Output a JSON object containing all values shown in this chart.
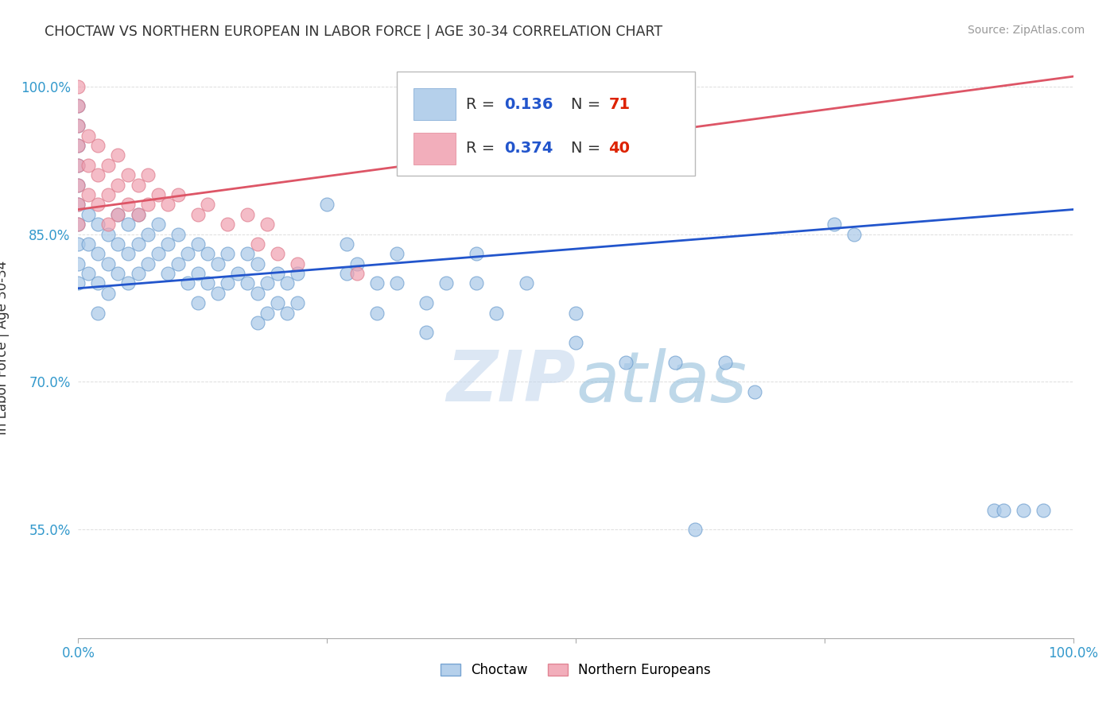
{
  "title": "CHOCTAW VS NORTHERN EUROPEAN IN LABOR FORCE | AGE 30-34 CORRELATION CHART",
  "source": "Source: ZipAtlas.com",
  "ylabel": "In Labor Force | Age 30-34",
  "xmin": 0.0,
  "xmax": 1.0,
  "ymin": 0.44,
  "ymax": 1.03,
  "yticks": [
    0.55,
    0.7,
    0.85,
    1.0
  ],
  "ytick_labels": [
    "55.0%",
    "70.0%",
    "85.0%",
    "100.0%"
  ],
  "xticks": [
    0.0,
    0.25,
    0.5,
    0.75,
    1.0
  ],
  "xtick_labels": [
    "0.0%",
    "",
    "",
    "",
    "100.0%"
  ],
  "watermark_text": "ZIPatlas",
  "choctaw_color": "#a8c8e8",
  "northern_color": "#f0a0b0",
  "choctaw_edge": "#6699cc",
  "northern_edge": "#dd7788",
  "choctaw_alpha": 0.7,
  "northern_alpha": 0.7,
  "choctaw_line_color": "#2255cc",
  "northern_line_color": "#dd5566",
  "legend_R_color": "#2255cc",
  "legend_N_color": "#dd2200",
  "background_color": "#ffffff",
  "grid_color": "#dddddd",
  "choctaw_line": {
    "x0": 0.0,
    "y0": 0.795,
    "x1": 1.0,
    "y1": 0.875
  },
  "northern_line": {
    "x0": 0.0,
    "y0": 0.875,
    "x1": 1.0,
    "y1": 1.01
  },
  "choctaw_points": [
    [
      0.0,
      0.98
    ],
    [
      0.0,
      0.96
    ],
    [
      0.0,
      0.94
    ],
    [
      0.0,
      0.92
    ],
    [
      0.0,
      0.9
    ],
    [
      0.0,
      0.88
    ],
    [
      0.0,
      0.86
    ],
    [
      0.0,
      0.84
    ],
    [
      0.0,
      0.82
    ],
    [
      0.0,
      0.8
    ],
    [
      0.01,
      0.87
    ],
    [
      0.01,
      0.84
    ],
    [
      0.01,
      0.81
    ],
    [
      0.02,
      0.86
    ],
    [
      0.02,
      0.83
    ],
    [
      0.02,
      0.8
    ],
    [
      0.02,
      0.77
    ],
    [
      0.03,
      0.85
    ],
    [
      0.03,
      0.82
    ],
    [
      0.03,
      0.79
    ],
    [
      0.04,
      0.87
    ],
    [
      0.04,
      0.84
    ],
    [
      0.04,
      0.81
    ],
    [
      0.05,
      0.86
    ],
    [
      0.05,
      0.83
    ],
    [
      0.05,
      0.8
    ],
    [
      0.06,
      0.87
    ],
    [
      0.06,
      0.84
    ],
    [
      0.06,
      0.81
    ],
    [
      0.07,
      0.85
    ],
    [
      0.07,
      0.82
    ],
    [
      0.08,
      0.86
    ],
    [
      0.08,
      0.83
    ],
    [
      0.09,
      0.84
    ],
    [
      0.09,
      0.81
    ],
    [
      0.1,
      0.85
    ],
    [
      0.1,
      0.82
    ],
    [
      0.11,
      0.83
    ],
    [
      0.11,
      0.8
    ],
    [
      0.12,
      0.84
    ],
    [
      0.12,
      0.81
    ],
    [
      0.12,
      0.78
    ],
    [
      0.13,
      0.83
    ],
    [
      0.13,
      0.8
    ],
    [
      0.14,
      0.82
    ],
    [
      0.14,
      0.79
    ],
    [
      0.15,
      0.83
    ],
    [
      0.15,
      0.8
    ],
    [
      0.16,
      0.81
    ],
    [
      0.17,
      0.83
    ],
    [
      0.17,
      0.8
    ],
    [
      0.18,
      0.82
    ],
    [
      0.18,
      0.79
    ],
    [
      0.18,
      0.76
    ],
    [
      0.19,
      0.8
    ],
    [
      0.19,
      0.77
    ],
    [
      0.2,
      0.81
    ],
    [
      0.2,
      0.78
    ],
    [
      0.21,
      0.8
    ],
    [
      0.21,
      0.77
    ],
    [
      0.22,
      0.81
    ],
    [
      0.22,
      0.78
    ],
    [
      0.25,
      0.88
    ],
    [
      0.27,
      0.84
    ],
    [
      0.27,
      0.81
    ],
    [
      0.28,
      0.82
    ],
    [
      0.3,
      0.8
    ],
    [
      0.3,
      0.77
    ],
    [
      0.32,
      0.83
    ],
    [
      0.32,
      0.8
    ],
    [
      0.35,
      0.78
    ],
    [
      0.35,
      0.75
    ],
    [
      0.37,
      0.8
    ],
    [
      0.4,
      0.83
    ],
    [
      0.4,
      0.8
    ],
    [
      0.42,
      0.77
    ],
    [
      0.45,
      0.8
    ],
    [
      0.5,
      0.77
    ],
    [
      0.5,
      0.74
    ],
    [
      0.55,
      0.72
    ],
    [
      0.6,
      0.72
    ],
    [
      0.62,
      0.55
    ],
    [
      0.65,
      0.72
    ],
    [
      0.68,
      0.69
    ],
    [
      0.76,
      0.86
    ],
    [
      0.78,
      0.85
    ],
    [
      0.92,
      0.57
    ],
    [
      0.93,
      0.57
    ],
    [
      0.95,
      0.57
    ],
    [
      0.97,
      0.57
    ]
  ],
  "northern_points": [
    [
      0.0,
      1.0
    ],
    [
      0.0,
      0.98
    ],
    [
      0.0,
      0.96
    ],
    [
      0.0,
      0.94
    ],
    [
      0.0,
      0.92
    ],
    [
      0.0,
      0.9
    ],
    [
      0.0,
      0.88
    ],
    [
      0.0,
      0.86
    ],
    [
      0.01,
      0.95
    ],
    [
      0.01,
      0.92
    ],
    [
      0.01,
      0.89
    ],
    [
      0.02,
      0.94
    ],
    [
      0.02,
      0.91
    ],
    [
      0.02,
      0.88
    ],
    [
      0.03,
      0.92
    ],
    [
      0.03,
      0.89
    ],
    [
      0.03,
      0.86
    ],
    [
      0.04,
      0.93
    ],
    [
      0.04,
      0.9
    ],
    [
      0.04,
      0.87
    ],
    [
      0.05,
      0.91
    ],
    [
      0.05,
      0.88
    ],
    [
      0.06,
      0.9
    ],
    [
      0.06,
      0.87
    ],
    [
      0.07,
      0.91
    ],
    [
      0.07,
      0.88
    ],
    [
      0.08,
      0.89
    ],
    [
      0.09,
      0.88
    ],
    [
      0.1,
      0.89
    ],
    [
      0.12,
      0.87
    ],
    [
      0.13,
      0.88
    ],
    [
      0.15,
      0.86
    ],
    [
      0.17,
      0.87
    ],
    [
      0.18,
      0.84
    ],
    [
      0.19,
      0.86
    ],
    [
      0.2,
      0.83
    ],
    [
      0.22,
      0.82
    ],
    [
      0.28,
      0.81
    ],
    [
      0.4,
      1.0
    ]
  ]
}
